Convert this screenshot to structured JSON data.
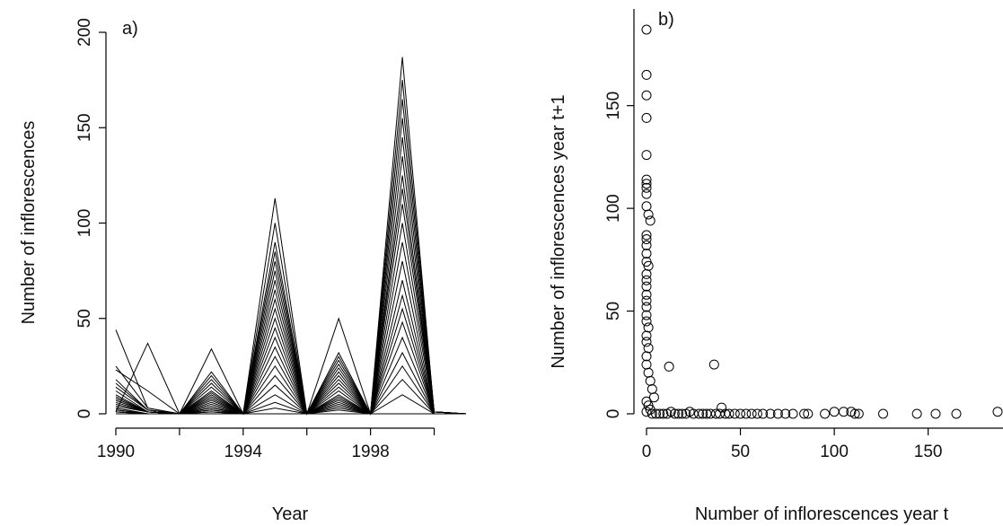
{
  "chart_data": [
    {
      "panel_label": "a)",
      "type": "line",
      "xlabel": "Year",
      "ylabel": "Number of inflorescences",
      "xlim": [
        1990,
        2001
      ],
      "ylim": [
        0,
        200
      ],
      "x_ticks": [
        1990,
        1992,
        1994,
        1996,
        1998,
        2000
      ],
      "x_tick_labels": [
        "1990",
        "1994",
        "1998"
      ],
      "x_tick_label_values": [
        1990,
        1994,
        1998
      ],
      "y_ticks": [
        0,
        50,
        100,
        150,
        200
      ],
      "y_tick_labels": [
        "0",
        "50",
        "100",
        "150",
        "200"
      ],
      "grid": false,
      "x": [
        1990,
        1991,
        1992,
        1993,
        1994,
        1995,
        1996,
        1997,
        1998,
        1999,
        2000,
        2001
      ],
      "series": [
        {
          "values": [
            44,
            3,
            0,
            0,
            0,
            0,
            0,
            0,
            0,
            0,
            0,
            0
          ]
        },
        {
          "values": [
            25,
            3,
            0,
            0,
            0,
            0,
            0,
            0,
            0,
            0,
            0,
            0
          ]
        },
        {
          "values": [
            1,
            37,
            0,
            0,
            0,
            0,
            0,
            0,
            0,
            0,
            0,
            0
          ]
        },
        {
          "values": [
            23,
            12,
            0,
            0,
            0,
            0,
            0,
            0,
            0,
            0,
            0,
            0
          ]
        },
        {
          "values": [
            0,
            0,
            0,
            34,
            0,
            0,
            0,
            0,
            0,
            0,
            0,
            0
          ]
        },
        {
          "values": [
            0,
            0,
            0,
            0,
            0,
            113,
            0,
            0,
            0,
            0,
            0,
            0
          ]
        },
        {
          "values": [
            0,
            0,
            0,
            0,
            0,
            0,
            0,
            50,
            0,
            0,
            0,
            0
          ]
        },
        {
          "values": [
            0,
            0,
            0,
            0,
            0,
            0,
            0,
            0,
            0,
            187,
            0,
            0
          ]
        },
        {
          "values": [
            18,
            2,
            0,
            22,
            0,
            100,
            0,
            32,
            0,
            175,
            1,
            0
          ]
        },
        {
          "values": [
            16,
            2,
            0,
            20,
            0,
            90,
            0,
            30,
            0,
            165,
            1,
            0
          ]
        },
        {
          "values": [
            14,
            2,
            0,
            18,
            0,
            85,
            0,
            28,
            0,
            155,
            1,
            0
          ]
        },
        {
          "values": [
            12,
            1,
            0,
            16,
            0,
            80,
            0,
            26,
            0,
            145,
            1,
            0
          ]
        },
        {
          "values": [
            10,
            1,
            0,
            14,
            0,
            75,
            0,
            24,
            0,
            135,
            1,
            0
          ]
        },
        {
          "values": [
            9,
            1,
            0,
            12,
            0,
            70,
            0,
            22,
            0,
            125,
            1,
            0
          ]
        },
        {
          "values": [
            8,
            1,
            0,
            11,
            0,
            65,
            0,
            20,
            0,
            118,
            1,
            0
          ]
        },
        {
          "values": [
            7,
            1,
            0,
            10,
            0,
            60,
            0,
            18,
            0,
            110,
            1,
            0
          ]
        },
        {
          "values": [
            6,
            1,
            0,
            9,
            0,
            55,
            0,
            16,
            0,
            100,
            1,
            0
          ]
        },
        {
          "values": [
            5,
            1,
            0,
            8,
            0,
            50,
            0,
            14,
            0,
            90,
            1,
            0
          ]
        },
        {
          "values": [
            4,
            1,
            0,
            7,
            0,
            45,
            0,
            12,
            0,
            80,
            0,
            0
          ]
        },
        {
          "values": [
            3,
            0,
            0,
            6,
            0,
            40,
            0,
            10,
            0,
            70,
            0,
            0
          ]
        },
        {
          "values": [
            3,
            0,
            0,
            5,
            0,
            35,
            0,
            9,
            0,
            62,
            0,
            0
          ]
        },
        {
          "values": [
            2,
            0,
            0,
            4,
            0,
            30,
            0,
            8,
            0,
            55,
            0,
            0
          ]
        },
        {
          "values": [
            2,
            0,
            0,
            3,
            0,
            25,
            0,
            7,
            0,
            48,
            0,
            0
          ]
        },
        {
          "values": [
            1,
            0,
            0,
            3,
            0,
            20,
            0,
            6,
            0,
            40,
            0,
            0
          ]
        },
        {
          "values": [
            1,
            0,
            0,
            2,
            0,
            15,
            0,
            5,
            0,
            32,
            0,
            0
          ]
        },
        {
          "values": [
            1,
            0,
            0,
            2,
            0,
            10,
            0,
            4,
            0,
            25,
            0,
            0
          ]
        },
        {
          "values": [
            0,
            0,
            0,
            1,
            0,
            6,
            0,
            3,
            0,
            18,
            0,
            0
          ]
        },
        {
          "values": [
            0,
            0,
            0,
            1,
            0,
            3,
            0,
            2,
            0,
            10,
            0,
            0
          ]
        }
      ]
    },
    {
      "panel_label": "b)",
      "type": "scatter",
      "xlabel": "Number of inflorescences year t",
      "ylabel": "Number of inflorescences year t+1",
      "xlim": [
        0,
        187
      ],
      "ylim": [
        0,
        187
      ],
      "x_ticks": [
        0,
        50,
        100,
        150
      ],
      "x_tick_labels": [
        "0",
        "50",
        "100",
        "150"
      ],
      "y_ticks": [
        0,
        50,
        100,
        150
      ],
      "y_tick_labels": [
        "0",
        "50",
        "100",
        "150"
      ],
      "grid": false,
      "points": [
        [
          0,
          187
        ],
        [
          0,
          165
        ],
        [
          0,
          155
        ],
        [
          0,
          144
        ],
        [
          0,
          126
        ],
        [
          0,
          114
        ],
        [
          0,
          112
        ],
        [
          0,
          110
        ],
        [
          0,
          107
        ],
        [
          0,
          101
        ],
        [
          1,
          97
        ],
        [
          2,
          94
        ],
        [
          0,
          87
        ],
        [
          0,
          85
        ],
        [
          0,
          82
        ],
        [
          0,
          78
        ],
        [
          0,
          74
        ],
        [
          1,
          72
        ],
        [
          0,
          68
        ],
        [
          0,
          65
        ],
        [
          0,
          62
        ],
        [
          0,
          58
        ],
        [
          0,
          55
        ],
        [
          0,
          52
        ],
        [
          0,
          48
        ],
        [
          0,
          45
        ],
        [
          1,
          42
        ],
        [
          0,
          38
        ],
        [
          0,
          35
        ],
        [
          1,
          32
        ],
        [
          0,
          28
        ],
        [
          0,
          24
        ],
        [
          1,
          20
        ],
        [
          2,
          16
        ],
        [
          3,
          12
        ],
        [
          4,
          8
        ],
        [
          0,
          6
        ],
        [
          1,
          4
        ],
        [
          2,
          2
        ],
        [
          0,
          1
        ],
        [
          12,
          23
        ],
        [
          36,
          24
        ],
        [
          40,
          3
        ],
        [
          3,
          0
        ],
        [
          5,
          0
        ],
        [
          7,
          0
        ],
        [
          9,
          0
        ],
        [
          11,
          0
        ],
        [
          13,
          1
        ],
        [
          15,
          0
        ],
        [
          17,
          0
        ],
        [
          19,
          0
        ],
        [
          21,
          0
        ],
        [
          23,
          1
        ],
        [
          25,
          0
        ],
        [
          28,
          0
        ],
        [
          30,
          0
        ],
        [
          32,
          0
        ],
        [
          34,
          0
        ],
        [
          37,
          0
        ],
        [
          39,
          0
        ],
        [
          42,
          0
        ],
        [
          44,
          0
        ],
        [
          47,
          0
        ],
        [
          50,
          0
        ],
        [
          53,
          0
        ],
        [
          56,
          0
        ],
        [
          59,
          0
        ],
        [
          62,
          0
        ],
        [
          66,
          0
        ],
        [
          70,
          0
        ],
        [
          74,
          0
        ],
        [
          78,
          0
        ],
        [
          84,
          0
        ],
        [
          86,
          0
        ],
        [
          95,
          0
        ],
        [
          100,
          1
        ],
        [
          105,
          1
        ],
        [
          109,
          1
        ],
        [
          111,
          0
        ],
        [
          113,
          0
        ],
        [
          126,
          0
        ],
        [
          144,
          0
        ],
        [
          154,
          0
        ],
        [
          165,
          0
        ],
        [
          187,
          1
        ]
      ]
    }
  ]
}
